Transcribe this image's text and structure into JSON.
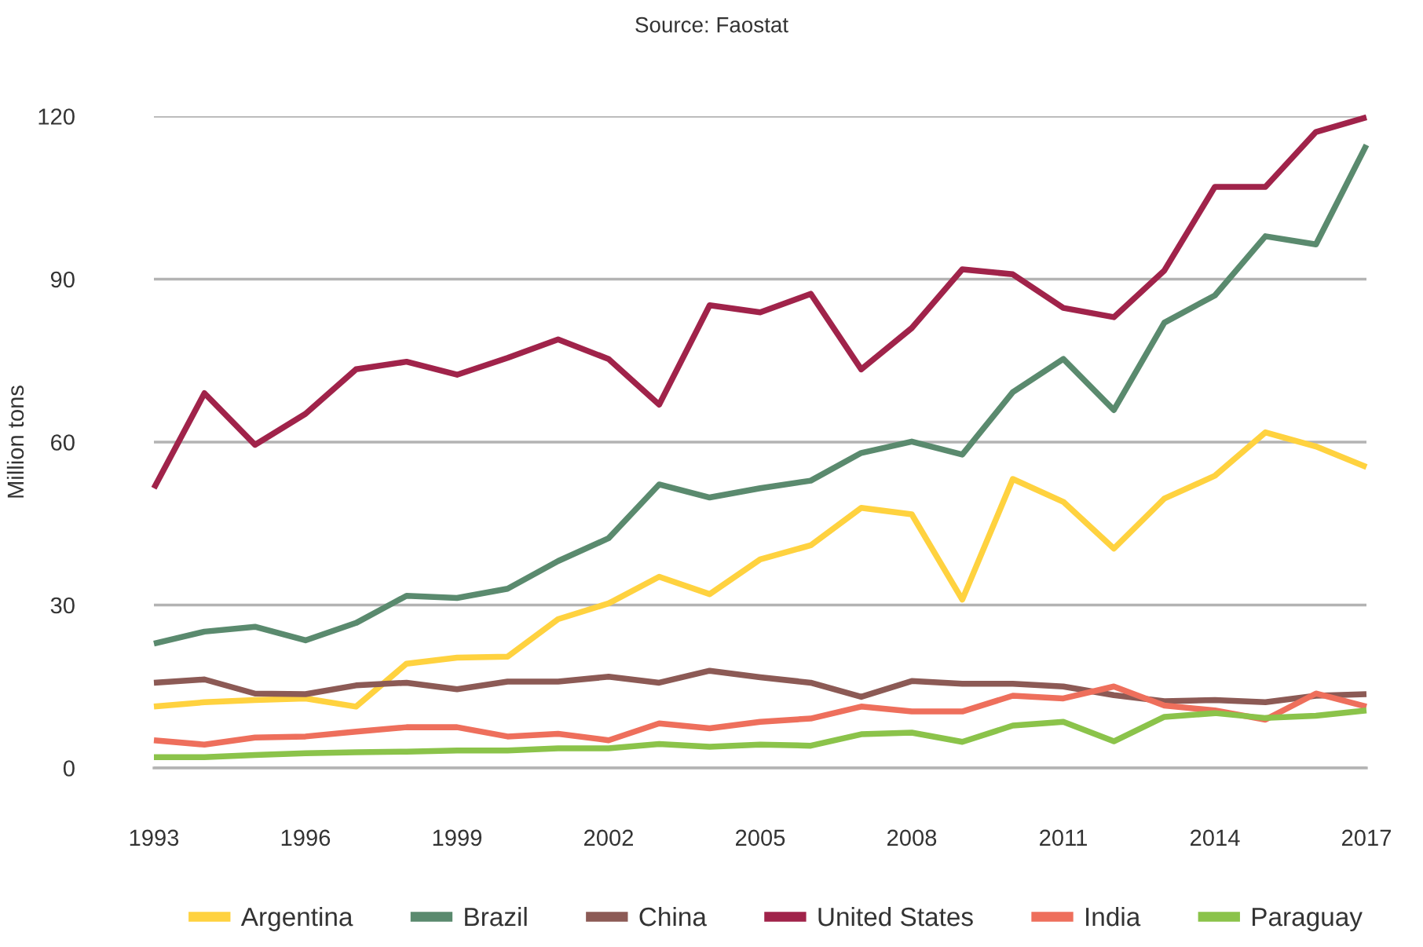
{
  "chart_data": {
    "type": "line",
    "ylabel": "Million tons",
    "annotations": [
      "Source: Faostat"
    ],
    "x": [
      1993,
      1994,
      1995,
      1996,
      1997,
      1998,
      1999,
      2000,
      2001,
      2002,
      2003,
      2004,
      2005,
      2006,
      2007,
      2008,
      2009,
      2010,
      2011,
      2012,
      2013,
      2014,
      2015,
      2016,
      2017
    ],
    "xlim": [
      1993,
      2017
    ],
    "xticks": [
      1993,
      1996,
      1999,
      2002,
      2005,
      2008,
      2011,
      2014,
      2017
    ],
    "ylim": [
      0,
      120
    ],
    "yticks": [
      0,
      30,
      60,
      90,
      120
    ],
    "grid": "y",
    "legend": "bottom",
    "line_style": "solid",
    "marker": "none",
    "series": [
      {
        "name": "Argentina",
        "color": "#ffd23f",
        "values": [
          11.3,
          12.1,
          12.5,
          12.8,
          11.3,
          19.2,
          20.3,
          20.5,
          27.4,
          30.3,
          35.2,
          32.0,
          38.4,
          41.0,
          47.9,
          46.7,
          31.0,
          53.2,
          49.0,
          40.4,
          49.6,
          53.8,
          61.8,
          59.2,
          55.4
        ]
      },
      {
        "name": "Brazil",
        "color": "#5a8a6e",
        "values": [
          22.9,
          25.1,
          26.0,
          23.5,
          26.7,
          31.7,
          31.3,
          33.0,
          38.1,
          42.3,
          52.2,
          49.8,
          51.5,
          52.9,
          58.0,
          60.1,
          57.7,
          69.2,
          75.3,
          65.9,
          82.0,
          87.0,
          97.9,
          96.4,
          114.7
        ]
      },
      {
        "name": "China",
        "color": "#8c5a55",
        "values": [
          15.7,
          16.3,
          13.7,
          13.6,
          15.2,
          15.7,
          14.5,
          15.9,
          15.9,
          16.8,
          15.7,
          17.9,
          16.7,
          15.7,
          13.1,
          16.0,
          15.5,
          15.5,
          15.0,
          13.4,
          12.3,
          12.5,
          12.1,
          13.3,
          13.6
        ]
      },
      {
        "name": "United States",
        "color": "#a0234a",
        "values": [
          51.5,
          69.0,
          59.5,
          65.2,
          73.4,
          74.8,
          72.4,
          75.5,
          78.9,
          75.3,
          66.9,
          85.2,
          83.9,
          87.3,
          73.4,
          81.0,
          91.8,
          90.9,
          84.7,
          83.0,
          91.6,
          107.0,
          107.0,
          117.1,
          119.8
        ]
      },
      {
        "name": "India",
        "color": "#ee6f5c",
        "values": [
          5.1,
          4.3,
          5.6,
          5.8,
          6.7,
          7.5,
          7.5,
          5.8,
          6.3,
          5.1,
          8.2,
          7.3,
          8.5,
          9.1,
          11.3,
          10.4,
          10.4,
          13.3,
          12.8,
          15.0,
          11.5,
          10.6,
          8.9,
          13.7,
          11.3
        ]
      },
      {
        "name": "Paraguay",
        "color": "#8bc34a",
        "values": [
          2.0,
          2.0,
          2.4,
          2.7,
          2.9,
          3.0,
          3.2,
          3.2,
          3.6,
          3.6,
          4.4,
          3.9,
          4.3,
          4.1,
          6.2,
          6.5,
          4.8,
          7.8,
          8.5,
          4.9,
          9.4,
          10.1,
          9.2,
          9.6,
          10.6
        ]
      }
    ]
  }
}
